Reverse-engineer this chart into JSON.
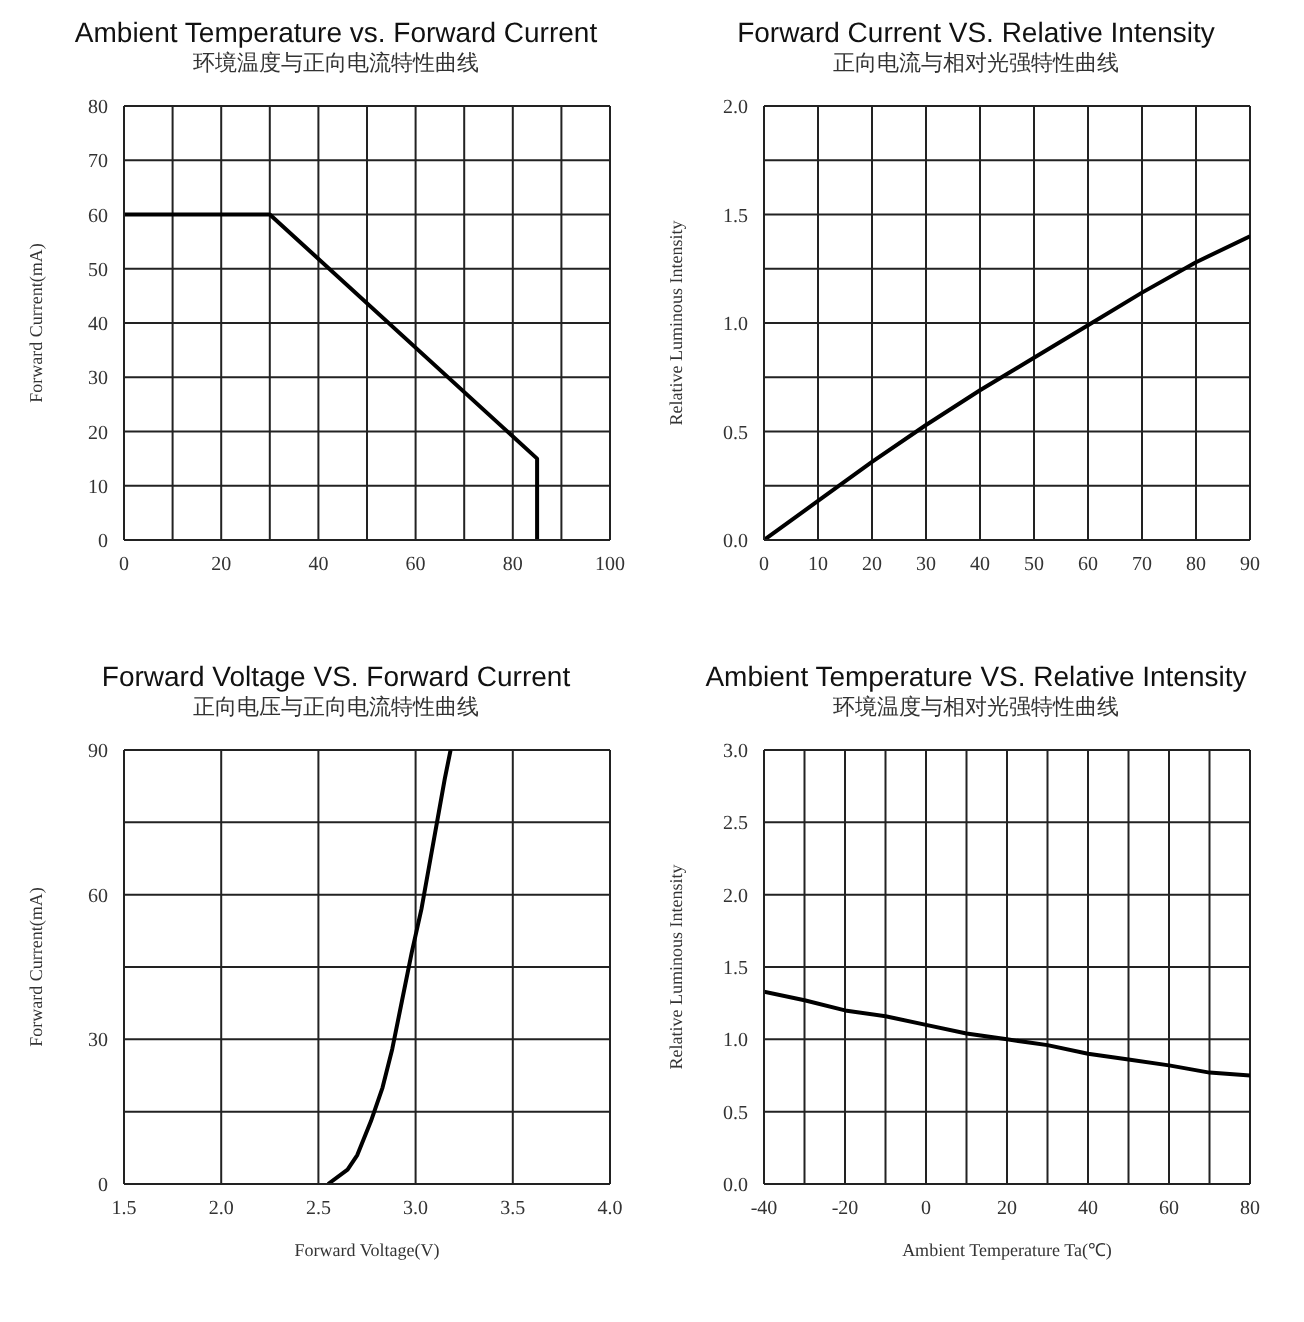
{
  "chart_data": [
    {
      "type": "line",
      "title": "Ambient Temperature vs. Forward Current",
      "subtitle": "环境温度与正向电流特性曲线",
      "ylabel": "Forward Current(mA)",
      "x": [
        0,
        30,
        85,
        85
      ],
      "series": [
        {
          "color": "#000000",
          "values": [
            60,
            60,
            15,
            0
          ]
        }
      ],
      "xlim": [
        0,
        100
      ],
      "xticks": [
        0,
        {
          "value": 10,
          "label": null
        },
        20,
        {
          "value": 30,
          "label": null
        },
        40,
        {
          "value": 50,
          "label": null
        },
        60,
        {
          "value": 70,
          "label": null
        },
        80,
        {
          "value": 90,
          "label": null
        },
        100
      ],
      "ylim": [
        0,
        80
      ],
      "yticks": [
        0,
        10,
        20,
        30,
        40,
        50,
        60,
        70,
        80
      ],
      "grid": true,
      "marker": "none",
      "line_style": "solid"
    },
    {
      "type": "line",
      "title": "Forward Current VS. Relative Intensity",
      "subtitle": "正向电流与相对光强特性曲线",
      "ylabel": "Relative Luminous Intensity",
      "x": [
        0,
        10,
        20,
        30,
        40,
        50,
        60,
        70,
        80,
        90
      ],
      "series": [
        {
          "color": "#000000",
          "values": [
            0,
            0.18,
            0.36,
            0.53,
            0.69,
            0.84,
            0.99,
            1.14,
            1.28,
            1.4
          ]
        }
      ],
      "xlim": [
        0,
        90
      ],
      "xticks": [
        0,
        10,
        20,
        30,
        40,
        50,
        60,
        70,
        80,
        90
      ],
      "ylim": [
        0,
        2
      ],
      "yticks": [
        {
          "value": 0,
          "label": "0.0"
        },
        {
          "value": 0.25,
          "label": null
        },
        0.5,
        {
          "value": 0.75,
          "label": null
        },
        {
          "value": 1,
          "label": "1.0"
        },
        {
          "value": 1.25,
          "label": null
        },
        1.5,
        {
          "value": 1.75,
          "label": null
        },
        {
          "value": 2,
          "label": "2.0"
        }
      ],
      "grid": true,
      "marker": "none",
      "line_style": "solid"
    },
    {
      "type": "line",
      "title": "Forward Voltage VS. Forward Current",
      "subtitle": "正向电压与正向电流特性曲线",
      "xlabel": "Forward Voltage(V)",
      "ylabel": "Forward Current(mA)",
      "x": [
        2.55,
        2.65,
        2.7,
        2.77,
        2.83,
        2.88,
        2.93,
        2.98,
        3.03,
        3.07,
        3.11,
        3.15,
        3.18
      ],
      "series": [
        {
          "color": "#000000",
          "values": [
            0,
            3,
            6,
            13,
            20,
            28,
            38,
            48,
            57,
            66,
            75,
            84,
            90
          ]
        }
      ],
      "xlim": [
        1.5,
        4
      ],
      "xticks": [
        1.5,
        {
          "value": 2,
          "label": "2.0"
        },
        2.5,
        {
          "value": 3,
          "label": "3.0"
        },
        3.5,
        {
          "value": 4,
          "label": "4.0"
        }
      ],
      "ylim": [
        0,
        90
      ],
      "yticks": [
        0,
        {
          "value": 15,
          "label": null
        },
        30,
        {
          "value": 45,
          "label": null
        },
        60,
        {
          "value": 75,
          "label": null
        },
        90
      ],
      "grid": true,
      "marker": "none",
      "line_style": "solid"
    },
    {
      "type": "line",
      "title": "Ambient Temperature VS. Relative Intensity",
      "subtitle": "环境温度与相对光强特性曲线",
      "xlabel": "Ambient Temperature    Ta(℃)",
      "ylabel": "Relative Luminous Intensity",
      "x": [
        -40,
        -30,
        -20,
        -10,
        0,
        10,
        20,
        30,
        40,
        50,
        60,
        70,
        80
      ],
      "series": [
        {
          "color": "#000000",
          "values": [
            1.33,
            1.27,
            1.2,
            1.16,
            1.1,
            1.04,
            1.0,
            0.96,
            0.9,
            0.86,
            0.82,
            0.77,
            0.75
          ]
        }
      ],
      "xlim": [
        -40,
        80
      ],
      "xticks": [
        -40,
        {
          "value": -30,
          "label": null
        },
        -20,
        {
          "value": -10,
          "label": null
        },
        0,
        {
          "value": 10,
          "label": null
        },
        20,
        {
          "value": 30,
          "label": null
        },
        40,
        {
          "value": 50,
          "label": null
        },
        60,
        {
          "value": 70,
          "label": null
        },
        80
      ],
      "ylim": [
        0,
        3
      ],
      "yticks": [
        {
          "value": 0,
          "label": "0.0"
        },
        0.5,
        {
          "value": 1,
          "label": "1.0"
        },
        1.5,
        {
          "value": 2,
          "label": "2.0"
        },
        2.5,
        {
          "value": 3,
          "label": "3.0"
        }
      ],
      "grid": true,
      "marker": "none",
      "line_style": "solid"
    }
  ]
}
